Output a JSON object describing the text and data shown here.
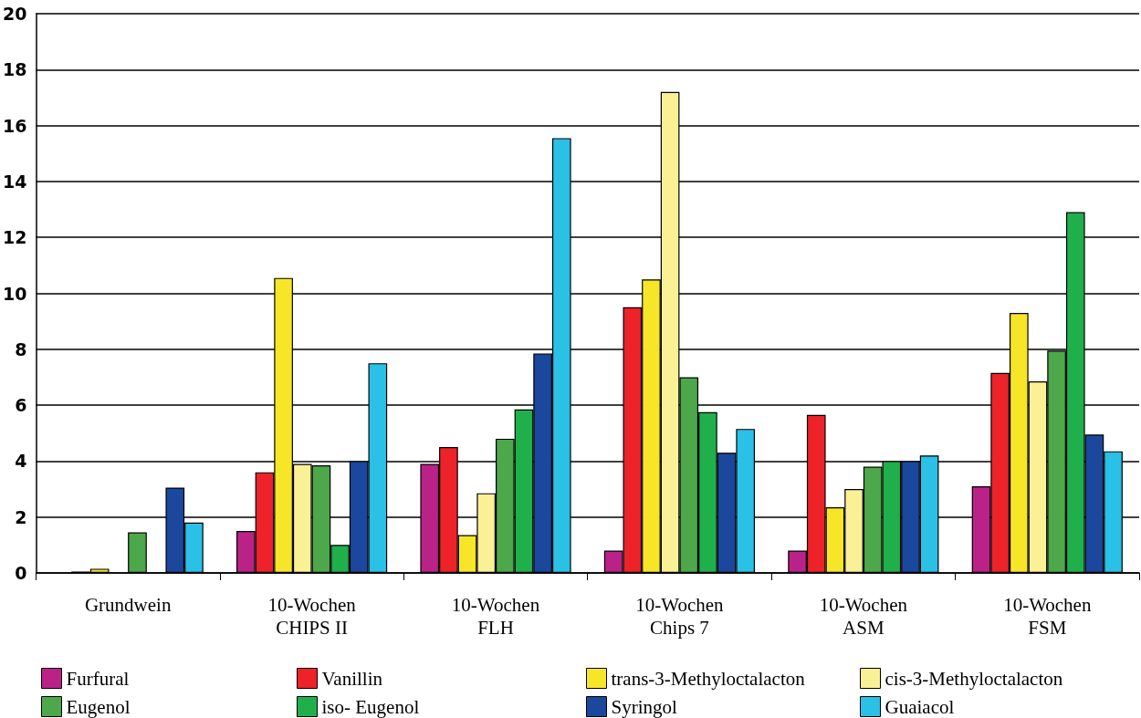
{
  "chart_data": {
    "type": "bar",
    "categories": [
      "Grundwein",
      "10-Wochen\nCHIPS II",
      "10-Wochen\nFLH",
      "10-Wochen\nChips 7",
      "10-Wochen\nASM",
      "10-Wochen\nFSM"
    ],
    "series": [
      {
        "name": "Furfural",
        "color": "#bb2288",
        "values": [
          null,
          1.5,
          3.9,
          0.8,
          0.8,
          3.1
        ]
      },
      {
        "name": "Vanillin",
        "color": "#ee2229",
        "values": [
          0.05,
          3.6,
          4.5,
          9.5,
          5.65,
          7.15
        ]
      },
      {
        "name": "trans-3-Methyloctalacton",
        "color": "#f7e628",
        "values": [
          0.15,
          10.55,
          1.35,
          10.5,
          2.35,
          9.3
        ]
      },
      {
        "name": "cis-3-Methyloctalacton",
        "color": "#faf096",
        "values": [
          null,
          3.9,
          2.85,
          17.2,
          3.0,
          6.85
        ]
      },
      {
        "name": "Eugenol",
        "color": "#4ca84a",
        "values": [
          1.45,
          3.85,
          4.8,
          7.0,
          3.8,
          7.95
        ]
      },
      {
        "name": "iso- Eugenol",
        "color": "#1fb04c",
        "values": [
          null,
          1.0,
          5.85,
          5.75,
          4.0,
          12.9
        ]
      },
      {
        "name": "Syringol",
        "color": "#1b479c",
        "values": [
          3.05,
          4.0,
          7.85,
          4.3,
          4.0,
          4.95
        ]
      },
      {
        "name": "Guaiacol",
        "color": "#2bc0e6",
        "values": [
          1.8,
          7.5,
          15.55,
          5.15,
          4.2,
          4.35
        ]
      }
    ],
    "ylim": [
      0,
      20
    ],
    "yticks": [
      0,
      2,
      4,
      6,
      8,
      10,
      12,
      14,
      16,
      18,
      20
    ],
    "grid": "y",
    "legend": "bottom"
  }
}
